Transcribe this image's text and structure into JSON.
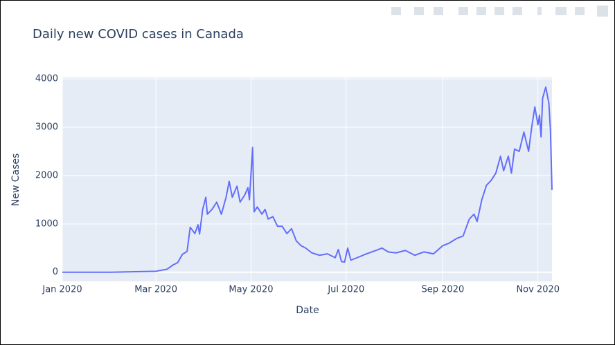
{
  "chart_data": {
    "type": "line",
    "title": "Daily new COVID cases in Canada",
    "x_label": "Date",
    "y_label": "New Cases",
    "x": [
      "2020-01-01",
      "2020-02-01",
      "2020-03-01",
      "2020-03-08",
      "2020-03-12",
      "2020-03-15",
      "2020-03-18",
      "2020-03-21",
      "2020-03-23",
      "2020-03-26",
      "2020-03-28",
      "2020-03-29",
      "2020-03-31",
      "2020-04-02",
      "2020-04-03",
      "2020-04-06",
      "2020-04-09",
      "2020-04-12",
      "2020-04-15",
      "2020-04-17",
      "2020-04-19",
      "2020-04-22",
      "2020-04-24",
      "2020-04-27",
      "2020-04-29",
      "2020-04-30",
      "2020-05-02",
      "2020-05-03",
      "2020-05-05",
      "2020-05-08",
      "2020-05-10",
      "2020-05-12",
      "2020-05-15",
      "2020-05-18",
      "2020-05-21",
      "2020-05-24",
      "2020-05-27",
      "2020-05-30",
      "2020-06-02",
      "2020-06-05",
      "2020-06-09",
      "2020-06-14",
      "2020-06-19",
      "2020-06-24",
      "2020-06-26",
      "2020-06-28",
      "2020-06-30",
      "2020-07-02",
      "2020-07-04",
      "2020-07-08",
      "2020-07-14",
      "2020-07-20",
      "2020-07-24",
      "2020-07-28",
      "2020-08-02",
      "2020-08-08",
      "2020-08-14",
      "2020-08-20",
      "2020-08-26",
      "2020-09-01",
      "2020-09-05",
      "2020-09-10",
      "2020-09-14",
      "2020-09-18",
      "2020-09-21",
      "2020-09-23",
      "2020-09-26",
      "2020-09-29",
      "2020-10-02",
      "2020-10-05",
      "2020-10-08",
      "2020-10-10",
      "2020-10-13",
      "2020-10-15",
      "2020-10-17",
      "2020-10-20",
      "2020-10-23",
      "2020-10-26",
      "2020-10-28",
      "2020-10-30",
      "2020-11-01",
      "2020-11-02",
      "2020-11-03",
      "2020-11-04",
      "2020-11-06",
      "2020-11-08",
      "2020-11-09",
      "2020-11-10"
    ],
    "values": [
      0,
      0,
      20,
      60,
      150,
      200,
      370,
      430,
      930,
      800,
      980,
      790,
      1300,
      1550,
      1200,
      1300,
      1450,
      1200,
      1550,
      1880,
      1550,
      1780,
      1450,
      1600,
      1750,
      1500,
      2580,
      1250,
      1350,
      1200,
      1300,
      1100,
      1150,
      950,
      950,
      800,
      900,
      650,
      550,
      500,
      400,
      350,
      380,
      300,
      470,
      220,
      210,
      500,
      250,
      300,
      380,
      450,
      500,
      420,
      400,
      450,
      350,
      420,
      380,
      550,
      600,
      700,
      750,
      1100,
      1200,
      1050,
      1500,
      1800,
      1900,
      2050,
      2400,
      2100,
      2400,
      2050,
      2550,
      2500,
      2900,
      2500,
      3000,
      3420,
      3050,
      3250,
      2800,
      3600,
      3830,
      3500,
      2950,
      1700
    ],
    "color": "#636efa",
    "xlim": [
      "2020-01-01",
      "2020-11-10"
    ],
    "xticks": [
      {
        "value": "2020-01-01",
        "label": "Jan 2020"
      },
      {
        "value": "2020-03-01",
        "label": "Mar 2020"
      },
      {
        "value": "2020-05-01",
        "label": "May 2020"
      },
      {
        "value": "2020-07-01",
        "label": "Jul 2020"
      },
      {
        "value": "2020-09-01",
        "label": "Sep 2020"
      },
      {
        "value": "2020-11-01",
        "label": "Nov 2020"
      }
    ],
    "ylim": [
      -190,
      4030
    ],
    "yticks": [
      0,
      1000,
      2000,
      3000,
      4000
    ],
    "grid": true
  }
}
